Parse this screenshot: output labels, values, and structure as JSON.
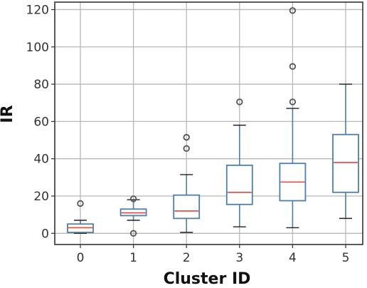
{
  "chart_data": {
    "type": "box",
    "xlabel": "Cluster ID",
    "ylabel": "IR",
    "ylim": [
      -6,
      124
    ],
    "yticks": [
      0,
      20,
      40,
      60,
      80,
      100,
      120
    ],
    "grid": true,
    "categories": [
      "0",
      "1",
      "2",
      "3",
      "4",
      "5"
    ],
    "boxes": [
      {
        "category": "0",
        "whisker_low": 0,
        "q1": 0.5,
        "median": 3,
        "q3": 5,
        "whisker_high": 7,
        "outliers": [
          16
        ]
      },
      {
        "category": "1",
        "whisker_low": 7,
        "q1": 9.5,
        "median": 11,
        "q3": 13,
        "whisker_high": 18,
        "outliers": [
          0,
          18.5
        ]
      },
      {
        "category": "2",
        "whisker_low": 0.5,
        "q1": 8,
        "median": 12,
        "q3": 20.5,
        "whisker_high": 31.5,
        "outliers": [
          45.5,
          51.5
        ]
      },
      {
        "category": "3",
        "whisker_low": 3.5,
        "q1": 15.5,
        "median": 22,
        "q3": 36.5,
        "whisker_high": 58,
        "outliers": [
          70.5
        ]
      },
      {
        "category": "4",
        "whisker_low": 3,
        "q1": 17.5,
        "median": 27.5,
        "q3": 37.5,
        "whisker_high": 67,
        "outliers": [
          70.5,
          89.5,
          119.5
        ]
      },
      {
        "category": "5",
        "whisker_low": 8,
        "q1": 22,
        "median": 38,
        "q3": 53,
        "whisker_high": 80,
        "outliers": []
      }
    ],
    "colors": {
      "box": "#4f7fa8",
      "median": "#e8443a",
      "whisker": "#4f7fa8",
      "cap": "#222222",
      "outlier": "#555555",
      "grid": "#b8b8b8",
      "frame": "#333333"
    }
  }
}
